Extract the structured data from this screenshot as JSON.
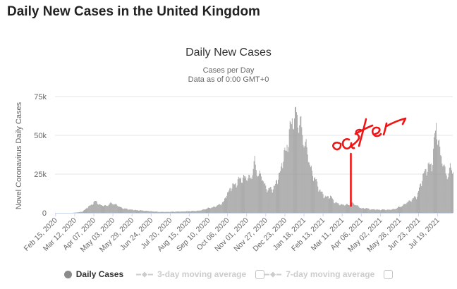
{
  "page": {
    "title": "Daily New Cases in the United Kingdom"
  },
  "chart": {
    "title": "Daily New Cases",
    "subtitle_line1": "Cases per Day",
    "subtitle_line2": "Data as of 0:00 GMT+0",
    "y_axis": {
      "title": "Novel Coronavirus Daily Cases",
      "ticks": [
        "0",
        "25k",
        "50k",
        "75k"
      ]
    },
    "legend": {
      "items": [
        {
          "label": "Daily Cases",
          "active": true,
          "marker": "circle"
        },
        {
          "label": "3-day moving average",
          "active": false,
          "marker": "diamond-line",
          "checkbox": "unchecked"
        },
        {
          "label": "7-day moving average",
          "active": false,
          "marker": "diamond-line",
          "checkbox": "unchecked"
        }
      ]
    },
    "colors": {
      "page_title": "#222222",
      "chart_title": "#333333",
      "subtitle": "#666666",
      "axis_text": "#666666",
      "gridline": "#e6e6e6",
      "axis_line": "#ccd6eb",
      "bars": "#999999",
      "legend_active_text": "#333333",
      "legend_disabled_text": "#cccccc",
      "legend_active_marker": "#8a8a8a"
    }
  },
  "annotation": {
    "text": "easter",
    "color": "#f11414",
    "points_to_label": "Apr 06, 2021"
  },
  "chart_data": {
    "type": "bar",
    "title": "Daily New Cases",
    "subtitle": [
      "Cases per Day",
      "Data as of 0:00 GMT+0"
    ],
    "series_name": "Daily Cases",
    "xlabel": "",
    "ylabel": "Novel Coronavirus Daily Cases",
    "ylim": [
      0,
      75000
    ],
    "y_ticks": [
      0,
      25000,
      50000,
      75000
    ],
    "grid": true,
    "legend_position": "bottom",
    "x_tick_labels": [
      "Feb 15, 2020",
      "Mar 12, 2020",
      "Apr 07, 2020",
      "May 03, 2020",
      "May 29, 2020",
      "Jun 24, 2020",
      "Jul 20, 2020",
      "Aug 15, 2020",
      "Sep 10, 2020",
      "Oct 06, 2020",
      "Nov 01, 2020",
      "Nov 27, 2020",
      "Dec 23, 2020",
      "Jan 18, 2021",
      "Feb 13, 2021",
      "Mar 11, 2021",
      "Apr 06, 2021",
      "May 02, 2021",
      "May 28, 2021",
      "Jun 23, 2021",
      "Jul 19, 2021"
    ],
    "x_tick_interval_days": 26,
    "x_start_date": "2020-02-15",
    "x_end_date": "2021-08-09",
    "anchor_points": [
      [
        "2020-02-15",
        0
      ],
      [
        "2020-03-01",
        12
      ],
      [
        "2020-03-10",
        90
      ],
      [
        "2020-03-17",
        400
      ],
      [
        "2020-03-22",
        720
      ],
      [
        "2020-03-27",
        2500
      ],
      [
        "2020-04-01",
        4300
      ],
      [
        "2020-04-05",
        5900
      ],
      [
        "2020-04-10",
        7500
      ],
      [
        "2020-04-15",
        5200
      ],
      [
        "2020-04-21",
        4500
      ],
      [
        "2020-04-26",
        4900
      ],
      [
        "2020-05-01",
        6200
      ],
      [
        "2020-05-06",
        5600
      ],
      [
        "2020-05-12",
        3900
      ],
      [
        "2020-05-18",
        2800
      ],
      [
        "2020-05-24",
        2400
      ],
      [
        "2020-05-29",
        2000
      ],
      [
        "2020-06-05",
        1700
      ],
      [
        "2020-06-12",
        1500
      ],
      [
        "2020-06-20",
        1200
      ],
      [
        "2020-06-28",
        850
      ],
      [
        "2020-07-06",
        620
      ],
      [
        "2020-07-14",
        650
      ],
      [
        "2020-07-22",
        700
      ],
      [
        "2020-07-30",
        850
      ],
      [
        "2020-08-07",
        950
      ],
      [
        "2020-08-15",
        1100
      ],
      [
        "2020-08-23",
        1250
      ],
      [
        "2020-08-31",
        1600
      ],
      [
        "2020-09-06",
        2600
      ],
      [
        "2020-09-13",
        3300
      ],
      [
        "2020-09-20",
        4100
      ],
      [
        "2020-09-26",
        5700
      ],
      [
        "2020-10-01",
        7000
      ],
      [
        "2020-10-04",
        11200
      ],
      [
        "2020-10-08",
        14200
      ],
      [
        "2020-10-14",
        17800
      ],
      [
        "2020-10-20",
        20200
      ],
      [
        "2020-10-27",
        22900
      ],
      [
        "2020-11-03",
        22100
      ],
      [
        "2020-11-08",
        24100
      ],
      [
        "2020-11-12",
        32000
      ],
      [
        "2020-11-16",
        25300
      ],
      [
        "2020-11-21",
        23800
      ],
      [
        "2020-11-25",
        18700
      ],
      [
        "2020-11-30",
        14800
      ],
      [
        "2020-12-05",
        15500
      ],
      [
        "2020-12-10",
        17800
      ],
      [
        "2020-12-16",
        25200
      ],
      [
        "2020-12-21",
        35900
      ],
      [
        "2020-12-25",
        39200
      ],
      [
        "2020-12-29",
        53100
      ],
      [
        "2021-01-01",
        55900
      ],
      [
        "2021-01-05",
        60900
      ],
      [
        "2021-01-08",
        68100
      ],
      [
        "2021-01-11",
        54900
      ],
      [
        "2021-01-15",
        55800
      ],
      [
        "2021-01-18",
        46200
      ],
      [
        "2021-01-22",
        40200
      ],
      [
        "2021-01-26",
        31400
      ],
      [
        "2021-01-31",
        23300
      ],
      [
        "2021-02-05",
        19100
      ],
      [
        "2021-02-10",
        13300
      ],
      [
        "2021-02-15",
        10600
      ],
      [
        "2021-02-20",
        10400
      ],
      [
        "2021-02-25",
        9800
      ],
      [
        "2021-03-02",
        6400
      ],
      [
        "2021-03-08",
        5500
      ],
      [
        "2021-03-14",
        5100
      ],
      [
        "2021-03-20",
        5300
      ],
      [
        "2021-03-26",
        6200
      ],
      [
        "2021-04-01",
        4500
      ],
      [
        "2021-04-06",
        2800
      ],
      [
        "2021-04-12",
        3100
      ],
      [
        "2021-04-18",
        2300
      ],
      [
        "2021-04-24",
        2200
      ],
      [
        "2021-05-01",
        2000
      ],
      [
        "2021-05-08",
        2100
      ],
      [
        "2021-05-15",
        2000
      ],
      [
        "2021-05-22",
        2600
      ],
      [
        "2021-05-28",
        3800
      ],
      [
        "2021-06-03",
        5100
      ],
      [
        "2021-06-09",
        7300
      ],
      [
        "2021-06-15",
        8800
      ],
      [
        "2021-06-21",
        11200
      ],
      [
        "2021-06-26",
        18200
      ],
      [
        "2021-07-01",
        27100
      ],
      [
        "2021-07-06",
        28800
      ],
      [
        "2021-07-11",
        31800
      ],
      [
        "2021-07-15",
        48500
      ],
      [
        "2021-07-17",
        54200
      ],
      [
        "2021-07-20",
        46500
      ],
      [
        "2021-07-24",
        36300
      ],
      [
        "2021-07-28",
        27700
      ],
      [
        "2021-08-01",
        24500
      ],
      [
        "2021-08-05",
        28000
      ],
      [
        "2021-08-09",
        27400
      ]
    ]
  }
}
